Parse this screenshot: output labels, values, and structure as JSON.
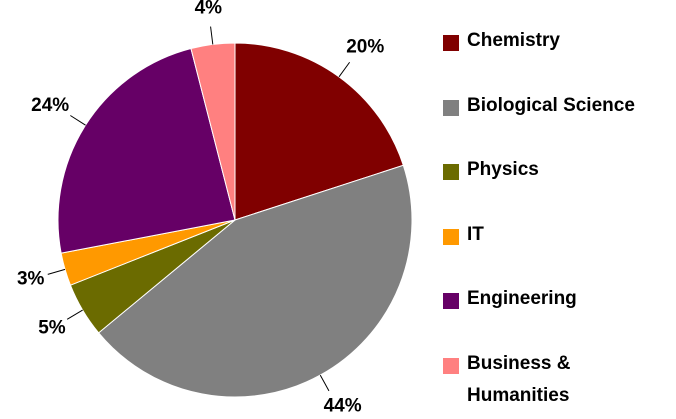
{
  "chart_data": {
    "type": "pie",
    "categories": [
      "Chemistry",
      "Biological Science",
      "Physics",
      "IT",
      "Engineering",
      "Business & Humanities"
    ],
    "values": [
      20,
      44,
      5,
      3,
      24,
      4
    ],
    "value_labels": [
      "20%",
      "44%",
      "5%",
      "3%",
      "24%",
      "4%"
    ],
    "colors": [
      "#800000",
      "#808080",
      "#6b6b00",
      "#ff9900",
      "#660066",
      "#ff8080"
    ],
    "legend": "right"
  }
}
